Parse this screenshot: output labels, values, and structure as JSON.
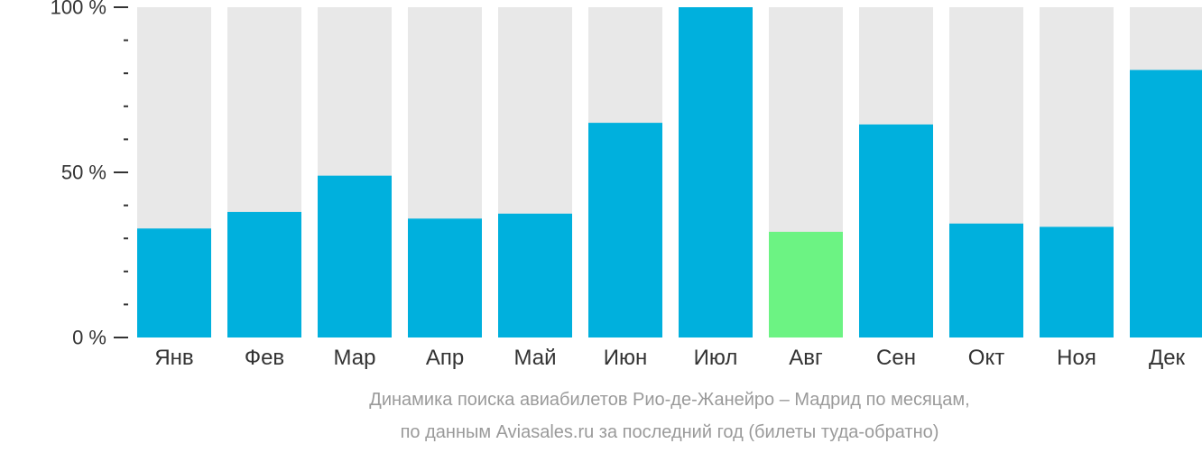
{
  "chart_data": {
    "type": "bar",
    "categories": [
      "Янв",
      "Фев",
      "Мар",
      "Апр",
      "Май",
      "Июн",
      "Июл",
      "Авг",
      "Сен",
      "Окт",
      "Ноя",
      "Дек"
    ],
    "values": [
      33,
      38,
      49,
      36,
      37.5,
      65,
      100,
      32,
      64.5,
      34.5,
      33.5,
      81
    ],
    "ylim": [
      0,
      100
    ],
    "y_ticks": [
      "0 %",
      "50 %",
      "100 %"
    ],
    "y_tick_values": [
      0,
      50,
      100
    ],
    "minor_tick_step": 10,
    "highlight_index": 7,
    "colors": {
      "bar": "#00b0dd",
      "highlight": "#6cf383",
      "background": "#e8e8e8",
      "axis": "#333333"
    }
  },
  "caption": {
    "line1": "Динамика поиска авиабилетов Рио-де-Жанейро – Мадрид по месяцам,",
    "line2": "по данным Aviasales.ru за последний год (билеты туда-обратно)"
  }
}
